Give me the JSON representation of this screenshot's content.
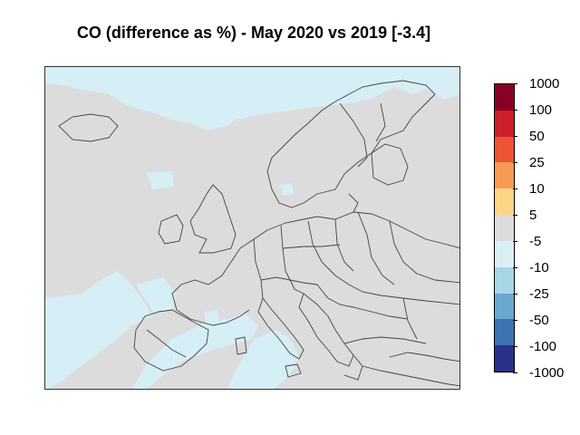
{
  "title": "CO (difference as %) - May 2020 vs 2019 [-3.4]",
  "colors": {
    "background_neutral": "#dcdcdc",
    "slight_decrease": "#d6eef5",
    "border_lines": "#444444"
  },
  "legend": {
    "labels": [
      "1000",
      "100",
      "50",
      "25",
      "10",
      "5",
      "-5",
      "-10",
      "-25",
      "-50",
      "-100",
      "-1000"
    ],
    "colors": [
      "#8a0022",
      "#cc1f2a",
      "#ec5434",
      "#f89a52",
      "#fdd685",
      "#dcdcdc",
      "#dbeff6",
      "#a6d6e6",
      "#6aa8d0",
      "#3b73b5",
      "#2a2f8a"
    ]
  }
}
